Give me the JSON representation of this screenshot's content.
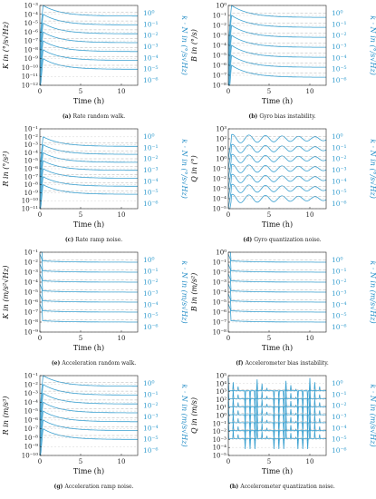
{
  "figure": {
    "panels": [
      {
        "id": "a",
        "caption_tag": "(a)",
        "caption": "Rate random walk.",
        "ylabel": "K in (°/s√Hz)",
        "xlabel": "Time (h)",
        "right_label": "k · N in (°/s√Hz)",
        "k_labels": [
          "10⁰",
          "10⁻¹",
          "10⁻²",
          "10⁻³",
          "10⁻⁴",
          "10⁻⁵",
          "10⁻⁶"
        ],
        "y_ticks": [
          "10⁻³",
          "10⁻⁴",
          "10⁻⁵",
          "10⁻⁶",
          "10⁻⁷",
          "10⁻⁸",
          "10⁻⁹",
          "10⁻¹⁰",
          "10⁻¹¹",
          "10⁻¹²"
        ],
        "x_ticks": [
          "0",
          "5",
          "10"
        ]
      },
      {
        "id": "b",
        "caption_tag": "(b)",
        "caption": "Gyro bias instability.",
        "ylabel": "B in (°/s)",
        "xlabel": "Time (h)",
        "right_label": "k · N in (°/s√Hz)",
        "k_labels": [
          "10⁰",
          "10⁻¹",
          "10⁻²",
          "10⁻³",
          "10⁻⁴",
          "10⁻⁵",
          "10⁻⁶"
        ],
        "y_ticks": [
          "10⁰",
          "10⁻¹",
          "10⁻²",
          "10⁻³",
          "10⁻⁴",
          "10⁻⁵",
          "10⁻⁶",
          "10⁻⁷",
          "10⁻⁸"
        ],
        "x_ticks": [
          "0",
          "5",
          "10"
        ]
      },
      {
        "id": "c",
        "caption_tag": "(c)",
        "caption": "Rate ramp noise.",
        "ylabel": "R in (°/s²)",
        "xlabel": "Time (h)",
        "right_label": "k · N in (°/s√Hz)",
        "k_labels": [
          "10⁰",
          "10⁻¹",
          "10⁻²",
          "10⁻³",
          "10⁻⁴",
          "10⁻⁵",
          "10⁻⁶"
        ],
        "y_ticks": [
          "10⁻¹",
          "10⁻²",
          "10⁻³",
          "10⁻⁴",
          "10⁻⁵",
          "10⁻⁶",
          "10⁻⁷",
          "10⁻⁸",
          "10⁻⁹",
          "10⁻¹⁰",
          "10⁻¹¹"
        ],
        "x_ticks": [
          "0",
          "5",
          "10"
        ]
      },
      {
        "id": "d",
        "caption_tag": "(d)",
        "caption": "Gyro quantization noise.",
        "ylabel": "Q in (°)",
        "xlabel": "Time (h)",
        "right_label": "k · N in (°/s√Hz)",
        "k_labels": [
          "10⁰",
          "10⁻¹",
          "10⁻²",
          "10⁻³",
          "10⁻⁴",
          "10⁻⁵",
          "10⁻⁶"
        ],
        "y_ticks": [
          "10³",
          "10²",
          "10¹",
          "10⁰",
          "10⁻¹",
          "10⁻²",
          "10⁻³",
          "10⁻⁴",
          "10⁻⁵"
        ],
        "x_ticks": [
          "0",
          "5",
          "10"
        ]
      },
      {
        "id": "e",
        "caption_tag": "(e)",
        "caption": "Acceleration random walk.",
        "ylabel": "K in (m/s²√Hz)",
        "xlabel": "Time (h)",
        "right_label": "k · N in (m/s√Hz)",
        "k_labels": [
          "10⁰",
          "10⁻¹",
          "10⁻²",
          "10⁻³",
          "10⁻⁴",
          "10⁻⁵",
          "10⁻⁶"
        ],
        "y_ticks": [
          "10⁻¹",
          "10⁻²",
          "10⁻³",
          "10⁻⁴",
          "10⁻⁵",
          "10⁻⁶",
          "10⁻⁷",
          "10⁻⁸",
          "10⁻⁹"
        ],
        "x_ticks": [
          "0",
          "5",
          "10"
        ]
      },
      {
        "id": "f",
        "caption_tag": "(f)",
        "caption": "Accelerometer bias instability.",
        "ylabel": "B in (m/s²)",
        "xlabel": "Time (h)",
        "right_label": "k · N in (m/s√Hz)",
        "k_labels": [
          "10⁰",
          "10⁻¹",
          "10⁻²",
          "10⁻³",
          "10⁻⁴",
          "10⁻⁵",
          "10⁻⁶"
        ],
        "y_ticks": [
          "10⁰",
          "10⁻¹",
          "10⁻²",
          "10⁻³",
          "10⁻⁴",
          "10⁻⁵",
          "10⁻⁶",
          "10⁻⁷",
          "10⁻⁸"
        ],
        "x_ticks": [
          "0",
          "5",
          "10"
        ]
      },
      {
        "id": "g",
        "caption_tag": "(g)",
        "caption": "Acceleration ramp noise.",
        "ylabel": "R in (m/s³)",
        "xlabel": "Time (h)",
        "right_label": "k · N in (m/s√Hz)",
        "k_labels": [
          "10⁰",
          "10⁻¹",
          "10⁻²",
          "10⁻³",
          "10⁻⁴",
          "10⁻⁵",
          "10⁻⁶"
        ],
        "y_ticks": [
          "10⁻¹",
          "10⁻²",
          "10⁻³",
          "10⁻⁴",
          "10⁻⁵",
          "10⁻⁶",
          "10⁻⁷",
          "10⁻⁸",
          "10⁻⁹",
          "10⁻¹⁰"
        ],
        "x_ticks": [
          "0",
          "5",
          "10"
        ]
      },
      {
        "id": "h",
        "caption_tag": "(h)",
        "caption": "Accelerometer quantization noise.",
        "ylabel": "Q in (m/s)",
        "xlabel": "Time (h)",
        "right_label": "k · N in (m/s√Hz)",
        "k_labels": [
          "10⁰",
          "10⁻¹",
          "10⁻²",
          "10⁻³",
          "10⁻⁴",
          "10⁻⁵",
          "10⁻⁶"
        ],
        "y_ticks": [
          "10⁵",
          "10⁴",
          "10³",
          "10²",
          "10¹",
          "10⁰",
          "10⁻¹",
          "10⁻²",
          "10⁻³",
          "10⁻⁴",
          "10⁻⁵"
        ],
        "x_ticks": [
          "0",
          "5",
          "10"
        ]
      }
    ]
  },
  "chart_data": [
    {
      "type": "line",
      "panel": "a",
      "title": "",
      "xlabel": "Time (h)",
      "ylabel": "K in (°/s√Hz)",
      "xlim": [
        0,
        12
      ],
      "ylim_exp": [
        -12,
        -3
      ],
      "y_log": true,
      "shape": "decay",
      "series_k": [
        "10⁰",
        "10⁻¹",
        "10⁻²",
        "10⁻³",
        "10⁻⁴",
        "10⁻⁵",
        "10⁻⁶"
      ],
      "series_level_exp": [
        -4,
        -5,
        -6,
        -7,
        -8,
        -9,
        -10
      ],
      "legend": "right"
    },
    {
      "type": "line",
      "panel": "b",
      "title": "",
      "xlabel": "Time (h)",
      "ylabel": "B in (°/s)",
      "xlim": [
        0,
        12
      ],
      "ylim_exp": [
        -8,
        0
      ],
      "y_log": true,
      "shape": "decay",
      "series_k": [
        "10⁰",
        "10⁻¹",
        "10⁻²",
        "10⁻³",
        "10⁻⁴",
        "10⁻⁵",
        "10⁻⁶"
      ],
      "series_level_exp": [
        -1,
        -2,
        -3,
        -4,
        -5,
        -6,
        -7
      ],
      "legend": "right"
    },
    {
      "type": "line",
      "panel": "c",
      "title": "",
      "xlabel": "Time (h)",
      "ylabel": "R in (°/s²)",
      "xlim": [
        0,
        12
      ],
      "ylim_exp": [
        -11,
        -1
      ],
      "y_log": true,
      "shape": "decay",
      "series_k": [
        "10⁰",
        "10⁻¹",
        "10⁻²",
        "10⁻³",
        "10⁻⁴",
        "10⁻⁵",
        "10⁻⁶"
      ],
      "series_level_exp": [
        -3,
        -4,
        -5,
        -6,
        -7,
        -8,
        -9
      ],
      "legend": "right"
    },
    {
      "type": "line",
      "panel": "d",
      "title": "",
      "xlabel": "Time (h)",
      "ylabel": "Q in (°)",
      "xlim": [
        0,
        12
      ],
      "ylim_exp": [
        -5,
        3
      ],
      "y_log": true,
      "shape": "oscillate",
      "series_k": [
        "10⁰",
        "10⁻¹",
        "10⁻²",
        "10⁻³",
        "10⁻⁴",
        "10⁻⁵",
        "10⁻⁶"
      ],
      "series_level_exp": [
        2,
        1,
        0,
        -1,
        -2,
        -3,
        -4
      ],
      "legend": "right"
    },
    {
      "type": "line",
      "panel": "e",
      "title": "",
      "xlabel": "Time (h)",
      "ylabel": "K in (m/s²√Hz)",
      "xlim": [
        0,
        12
      ],
      "ylim_exp": [
        -9,
        -1
      ],
      "y_log": true,
      "shape": "flat",
      "series_k": [
        "10⁰",
        "10⁻¹",
        "10⁻²",
        "10⁻³",
        "10⁻⁴",
        "10⁻⁵",
        "10⁻⁶"
      ],
      "series_level_exp": [
        -2,
        -3,
        -4,
        -5,
        -6,
        -7,
        -8
      ],
      "legend": "right"
    },
    {
      "type": "line",
      "panel": "f",
      "title": "",
      "xlabel": "Time (h)",
      "ylabel": "B in (m/s²)",
      "xlim": [
        0,
        12
      ],
      "ylim_exp": [
        -8,
        0
      ],
      "y_log": true,
      "shape": "flat",
      "series_k": [
        "10⁰",
        "10⁻¹",
        "10⁻²",
        "10⁻³",
        "10⁻⁴",
        "10⁻⁵",
        "10⁻⁶"
      ],
      "series_level_exp": [
        -1,
        -2,
        -3,
        -4,
        -5,
        -6,
        -7
      ],
      "legend": "right"
    },
    {
      "type": "line",
      "panel": "g",
      "title": "",
      "xlabel": "Time (h)",
      "ylabel": "R in (m/s³)",
      "xlim": [
        0,
        12
      ],
      "ylim_exp": [
        -10,
        -1
      ],
      "y_log": true,
      "shape": "decay",
      "series_k": [
        "10⁰",
        "10⁻¹",
        "10⁻²",
        "10⁻³",
        "10⁻⁴",
        "10⁻⁵",
        "10⁻⁶"
      ],
      "series_level_exp": [
        -2,
        -3,
        -4,
        -5,
        -6,
        -7,
        -8
      ],
      "legend": "right"
    },
    {
      "type": "line",
      "panel": "h",
      "title": "",
      "xlabel": "Time (h)",
      "ylabel": "Q in (m/s)",
      "xlim": [
        0,
        12
      ],
      "ylim_exp": [
        -5,
        5
      ],
      "y_log": true,
      "shape": "spikes",
      "series_k": [
        "10⁰",
        "10⁻¹",
        "10⁻²",
        "10⁻³",
        "10⁻⁴",
        "10⁻⁵",
        "10⁻⁶"
      ],
      "series_level_exp": [
        3,
        2,
        1,
        0,
        -1,
        -2,
        -3
      ],
      "legend": "right"
    }
  ],
  "colors": {
    "line": "#3aa0d0",
    "grid": "#c8c8c8",
    "axis": "#222222",
    "ref": "#b0b0b0"
  }
}
